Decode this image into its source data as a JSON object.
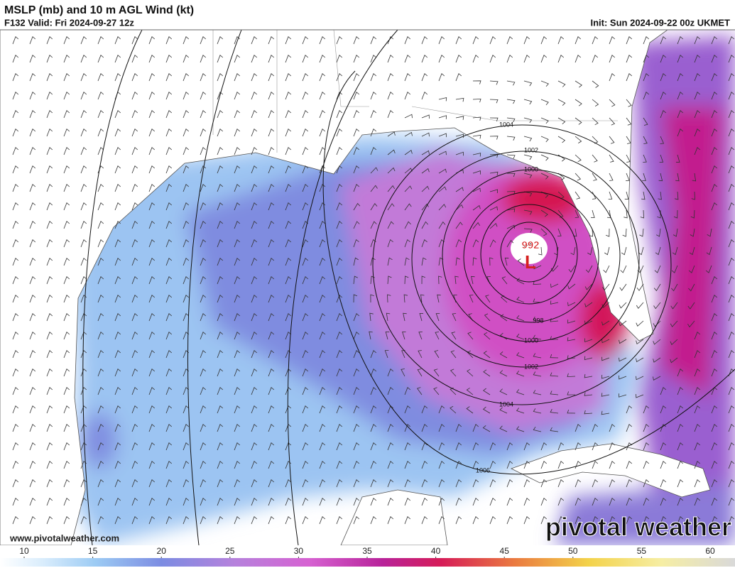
{
  "header": {
    "title": "MSLP (mb) and 10 m AGL Wind (kt)",
    "valid": "F132 Valid: Fri 2024-09-27 12z",
    "init": "Init: Sun 2024-09-22 00z UKMET"
  },
  "map": {
    "low_pressure": "992",
    "low_symbol": "L",
    "isobar_labels": [
      1004,
      1002,
      1000,
      998,
      1000,
      1002,
      1004,
      1006
    ]
  },
  "footer": {
    "website": "www.pivotalweather.com",
    "logo": "pivotal weather"
  },
  "colorbar": {
    "ticks": [
      10,
      15,
      20,
      25,
      30,
      35,
      40,
      45,
      50,
      55,
      60
    ]
  }
}
